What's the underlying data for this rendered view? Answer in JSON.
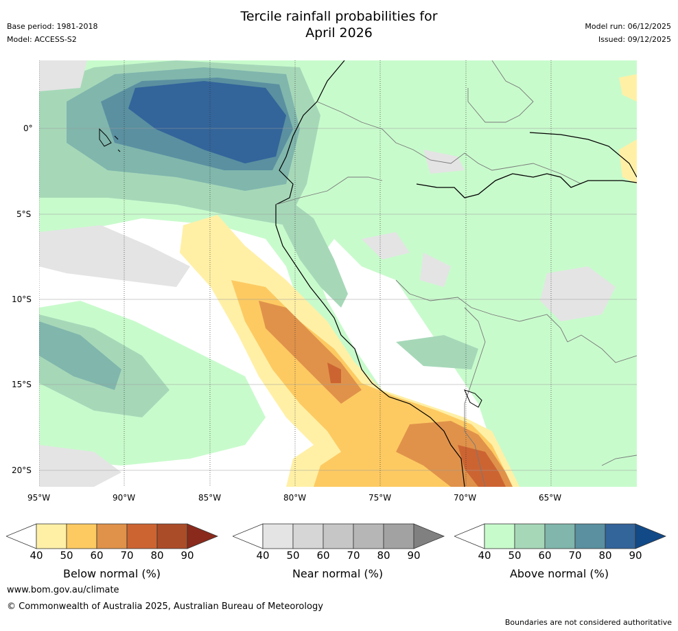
{
  "header": {
    "title_line1": "Tercile rainfall probabilities for",
    "title_line2": "April 2026",
    "base_period": "Base period: 1981-2018",
    "model": "Model: ACCESS-S2",
    "model_run": "Model run: 06/12/2025",
    "issued": "Issued: 09/12/2025"
  },
  "map": {
    "lat_labels": [
      "0°",
      "5°S",
      "10°S",
      "15°S",
      "20°S"
    ],
    "lon_labels": [
      "95°W",
      "90°W",
      "85°W",
      "80°W",
      "75°W",
      "70°W",
      "65°W"
    ]
  },
  "legends": [
    {
      "name": "Below normal (%)",
      "ticks": [
        "40",
        "50",
        "60",
        "70",
        "80",
        "90"
      ],
      "colors": [
        "#fff0a6",
        "#fdca62",
        "#e0924a",
        "#cc6432",
        "#ab4c28",
        "#8a2a1c"
      ]
    },
    {
      "name": "Near normal (%)",
      "ticks": [
        "40",
        "50",
        "60",
        "70",
        "80",
        "90"
      ],
      "colors": [
        "#e4e4e4",
        "#d6d6d6",
        "#c6c6c6",
        "#b6b6b6",
        "#a2a2a2",
        "#808080"
      ]
    },
    {
      "name": "Above normal (%)",
      "ticks": [
        "40",
        "50",
        "60",
        "70",
        "80",
        "90"
      ],
      "colors": [
        "#c8fbcc",
        "#a6d8b8",
        "#80b6ac",
        "#5a90a0",
        "#33649a",
        "#124a88"
      ]
    }
  ],
  "footer": {
    "website": "www.bom.gov.au/climate",
    "copyright": "© Commonwealth of Australia 2025, Australian Bureau of Meteorology",
    "disclaimer": "Boundaries are not considered authoritative"
  }
}
